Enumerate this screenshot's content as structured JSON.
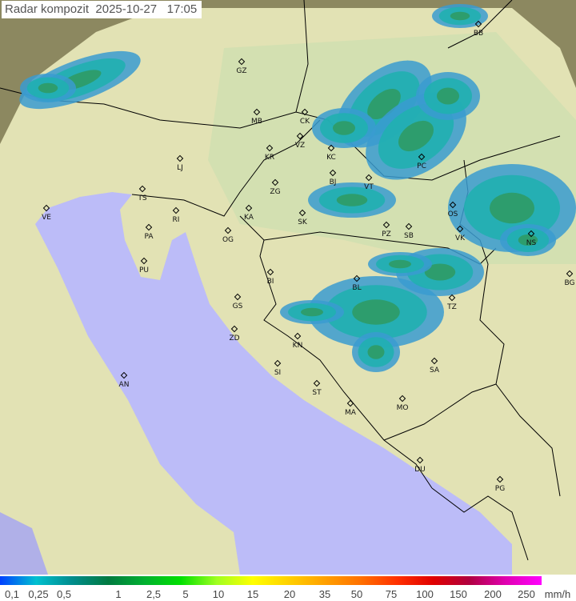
{
  "title": {
    "label": "Radar kompozit",
    "date": "2025-10-27",
    "time": "17:05"
  },
  "legend": {
    "unit": "mm/h",
    "ticks": [
      "0,1",
      "0,25",
      "0,5",
      "1",
      "2,5",
      "5",
      "10",
      "15",
      "20",
      "35",
      "50",
      "75",
      "100",
      "150",
      "200",
      "250"
    ],
    "colors": [
      "#0040ff",
      "#00c0d0",
      "#008c8c",
      "#007a40",
      "#00b030",
      "#00e000",
      "#a0ff20",
      "#ffff00",
      "#ffd000",
      "#ffa000",
      "#ff7000",
      "#ff3000",
      "#e00000",
      "#b00040",
      "#e000b0",
      "#ff00ff"
    ]
  },
  "map": {
    "colors": {
      "land": "#e2e2b4",
      "outside": "#8c8860",
      "sea": "#bcbcf8",
      "rain_light": "#3a9bd0",
      "rain_mid": "#20b0b0",
      "rain_heavy": "#2f9a60",
      "border": "#000000"
    },
    "cities": [
      "GZ",
      "BB",
      "MB",
      "CK",
      "VZ",
      "KR",
      "KC",
      "LJ",
      "PC",
      "ZG",
      "BJ",
      "VT",
      "TS",
      "VE",
      "KA",
      "SK",
      "RI",
      "OS",
      "PA",
      "OG",
      "PZ",
      "SB",
      "VK",
      "NS",
      "PU",
      "BG",
      "BI",
      "GS",
      "BL",
      "TZ",
      "ZD",
      "KN",
      "SA",
      "SI",
      "AN",
      "ST",
      "MA",
      "MO",
      "DU",
      "PG"
    ]
  }
}
